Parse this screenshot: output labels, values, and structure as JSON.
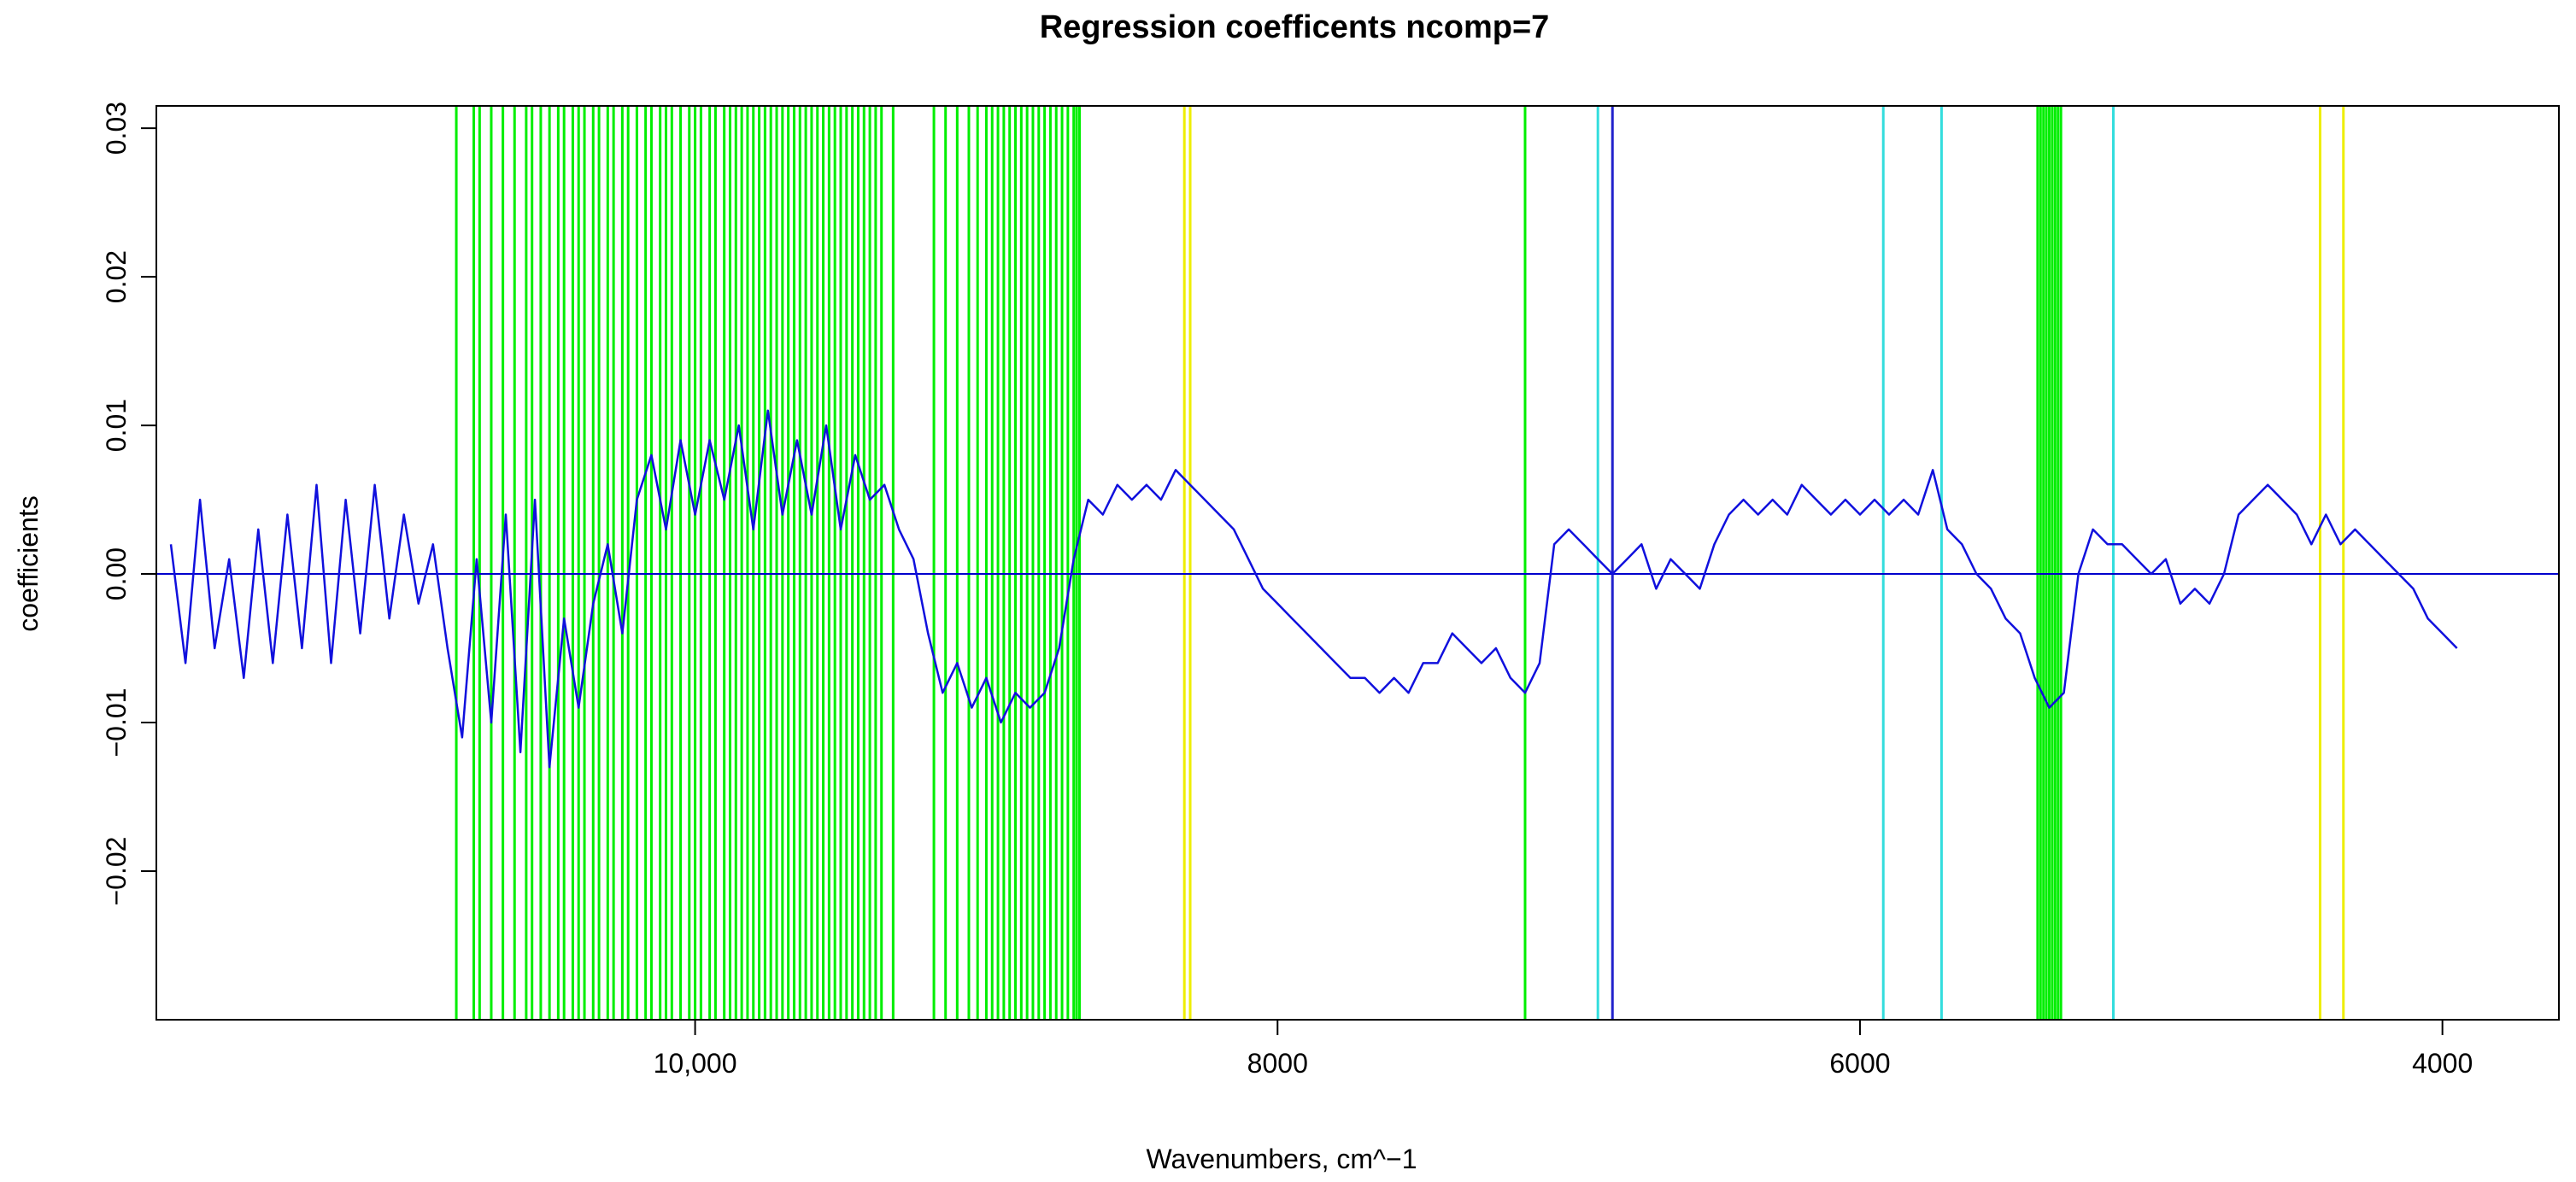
{
  "chart_data": {
    "type": "line",
    "title": "Regression coefficents ncomp=7",
    "xlabel": "Wavenumbers, cm^−1",
    "ylabel": "coefficients",
    "x_reversed": true,
    "xlim": [
      11850,
      3600
    ],
    "ylim": [
      -0.03,
      0.0315
    ],
    "x_ticks": [
      10000,
      8000,
      6000,
      4000
    ],
    "x_tick_labels": [
      "10,000",
      "8000",
      "6000",
      "4000"
    ],
    "y_ticks": [
      -0.02,
      -0.01,
      0.0,
      0.01,
      0.02,
      0.03
    ],
    "y_tick_labels": [
      "−0.02",
      "−0.01",
      "0.00",
      "0.01",
      "0.02",
      "0.03"
    ],
    "grid": false,
    "legend": "none",
    "reference_line": {
      "y": 0.0,
      "color": "#0000cc"
    },
    "series": [
      {
        "color": "#1010dd",
        "x": [
          11800,
          11750,
          11700,
          11650,
          11600,
          11550,
          11500,
          11450,
          11400,
          11350,
          11300,
          11250,
          11200,
          11150,
          11100,
          11050,
          11000,
          10950,
          10900,
          10850,
          10800,
          10750,
          10700,
          10650,
          10600,
          10550,
          10500,
          10450,
          10400,
          10350,
          10300,
          10250,
          10200,
          10150,
          10100,
          10050,
          10000,
          9950,
          9900,
          9850,
          9800,
          9750,
          9700,
          9650,
          9600,
          9550,
          9500,
          9450,
          9400,
          9350,
          9300,
          9250,
          9200,
          9150,
          9100,
          9050,
          9000,
          8950,
          8900,
          8850,
          8800,
          8750,
          8700,
          8650,
          8600,
          8550,
          8500,
          8450,
          8400,
          8350,
          8300,
          8250,
          8200,
          8150,
          8100,
          8050,
          8000,
          7950,
          7900,
          7850,
          7800,
          7750,
          7700,
          7650,
          7600,
          7550,
          7500,
          7450,
          7400,
          7350,
          7300,
          7250,
          7200,
          7150,
          7100,
          7050,
          7000,
          6950,
          6900,
          6850,
          6800,
          6750,
          6700,
          6650,
          6600,
          6550,
          6500,
          6450,
          6400,
          6350,
          6300,
          6250,
          6200,
          6150,
          6100,
          6050,
          6000,
          5950,
          5900,
          5850,
          5800,
          5750,
          5700,
          5650,
          5600,
          5550,
          5500,
          5450,
          5400,
          5350,
          5300,
          5250,
          5200,
          5150,
          5100,
          5050,
          5000,
          4950,
          4900,
          4850,
          4800,
          4750,
          4700,
          4650,
          4600,
          4550,
          4500,
          4450,
          4400,
          4350,
          4300,
          4250,
          4200,
          4150,
          4100,
          4050,
          4000,
          3950
        ],
        "values": [
          0.002,
          -0.006,
          0.005,
          -0.005,
          0.001,
          -0.007,
          0.003,
          -0.006,
          0.004,
          -0.005,
          0.006,
          -0.006,
          0.005,
          -0.004,
          0.006,
          -0.003,
          0.004,
          -0.002,
          0.002,
          -0.005,
          -0.011,
          0.001,
          -0.01,
          0.004,
          -0.012,
          0.005,
          -0.013,
          -0.003,
          -0.009,
          -0.002,
          0.002,
          -0.004,
          0.005,
          0.008,
          0.003,
          0.009,
          0.004,
          0.009,
          0.005,
          0.01,
          0.003,
          0.011,
          0.004,
          0.009,
          0.004,
          0.01,
          0.003,
          0.008,
          0.005,
          0.006,
          0.003,
          0.001,
          -0.004,
          -0.008,
          -0.006,
          -0.009,
          -0.007,
          -0.01,
          -0.008,
          -0.009,
          -0.008,
          -0.005,
          0.001,
          0.005,
          0.004,
          0.006,
          0.005,
          0.006,
          0.005,
          0.007,
          0.006,
          0.005,
          0.004,
          0.003,
          0.001,
          -0.001,
          -0.002,
          -0.003,
          -0.004,
          -0.005,
          -0.006,
          -0.007,
          -0.007,
          -0.008,
          -0.007,
          -0.008,
          -0.006,
          -0.006,
          -0.004,
          -0.005,
          -0.006,
          -0.005,
          -0.007,
          -0.008,
          -0.006,
          0.002,
          0.003,
          0.002,
          0.001,
          0.0,
          0.001,
          0.002,
          -0.001,
          0.001,
          0.0,
          -0.001,
          0.002,
          0.004,
          0.005,
          0.004,
          0.005,
          0.004,
          0.006,
          0.005,
          0.004,
          0.005,
          0.004,
          0.005,
          0.004,
          0.005,
          0.004,
          0.007,
          0.003,
          0.002,
          0.0,
          -0.001,
          -0.003,
          -0.004,
          -0.007,
          -0.009,
          -0.008,
          0.0,
          0.003,
          0.002,
          0.002,
          0.001,
          0.0,
          0.001,
          -0.002,
          -0.001,
          -0.002,
          0.0,
          0.004,
          0.005,
          0.006,
          0.005,
          0.004,
          0.002,
          0.004,
          0.002,
          0.003,
          0.002,
          0.001,
          0.0,
          -0.001,
          -0.003,
          -0.004,
          -0.005
        ]
      }
    ],
    "vlines": [
      {
        "color": "#00ee00",
        "x": [
          10820,
          10760,
          10740,
          10700,
          10660,
          10620,
          10580,
          10560,
          10530,
          10500,
          10470,
          10450,
          10420,
          10400,
          10380,
          10350,
          10330,
          10300,
          10280,
          10250,
          10230,
          10200,
          10170,
          10150,
          10120,
          10100,
          10080,
          10050,
          10020,
          10000,
          9980,
          9950,
          9930,
          9900,
          9880,
          9860,
          9840,
          9820,
          9800,
          9780,
          9760,
          9740,
          9720,
          9700,
          9680,
          9660,
          9640,
          9620,
          9600,
          9580,
          9560,
          9540,
          9520,
          9500,
          9480,
          9460,
          9440,
          9420,
          9400,
          9380,
          9360,
          9320,
          9180,
          9140,
          9100,
          9060,
          9030,
          9000,
          8980,
          8960,
          8940,
          8920,
          8900,
          8880,
          8860,
          8840,
          8820,
          8800,
          8780,
          8760,
          8740,
          8720,
          8700,
          8690,
          8680,
          7150,
          5390,
          5380,
          5370,
          5360,
          5350,
          5340,
          5330,
          5320,
          5310
        ]
      },
      {
        "color": "#eeee00",
        "x": [
          8320,
          8300,
          4420,
          4340
        ]
      },
      {
        "color": "#33dddd",
        "x": [
          6900,
          5920,
          5720,
          5130
        ]
      },
      {
        "color": "#2222cc",
        "x": [
          6850
        ]
      }
    ]
  }
}
